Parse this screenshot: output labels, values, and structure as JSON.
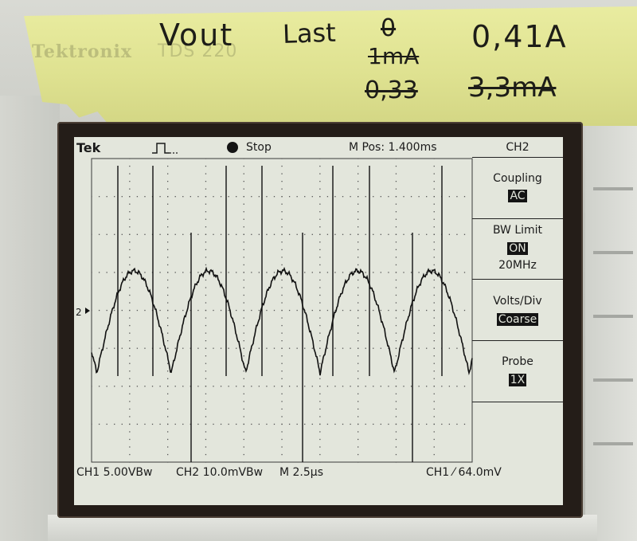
{
  "tape": {
    "printed_brand": "Tektronix",
    "printed_model": "TDS 220",
    "note_vout": "Vout",
    "note_last": "Last",
    "note_last_value_1": "0",
    "note_struck_1": "1mA",
    "note_value_right_1": "0,41A",
    "note_struck_2": "0,33",
    "note_struck_3": "3,3mA"
  },
  "scope": {
    "brand": "Tek",
    "status": "Stop",
    "mpos": "M Pos: 1.400ms",
    "channel_header": "CH2",
    "ch2_marker": "2",
    "menu": [
      {
        "label": "Coupling",
        "value": "AC"
      },
      {
        "label": "BW Limit",
        "value": "ON",
        "extra": "20MHz"
      },
      {
        "label": "Volts/Div",
        "value": "Coarse"
      },
      {
        "label": "Probe",
        "value": "1X"
      }
    ],
    "footer": {
      "ch1": "CH1  5.00VBw",
      "ch2": "CH2  10.0mVBw",
      "time": "M 2.5µs",
      "trigger": "CH1  ⁄  64.0mV"
    }
  },
  "colors": {
    "tape": "#e2e594",
    "screen": "#e3e6dc",
    "trace": "#111111",
    "bezel": "#241d18"
  }
}
